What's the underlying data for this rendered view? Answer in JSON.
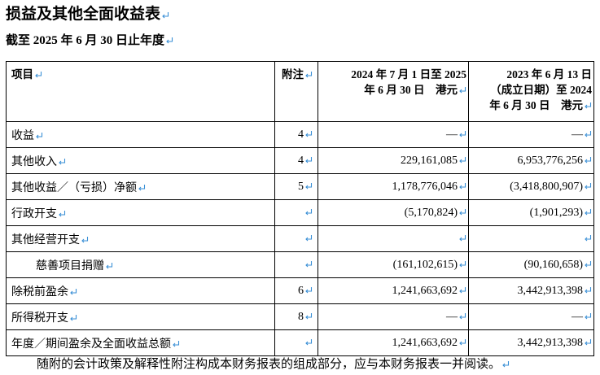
{
  "title": "损益及其他全面收益表",
  "subtitle": "截至 2025 年 6 月 30 日止年度",
  "table": {
    "header": [
      "项目",
      "附注",
      [
        "2024 年 7 月 1 日至 2025",
        "年 6 月 30 日　港元"
      ],
      [
        "2023 年 6 月 13 日",
        "（成立日期）至 2024",
        "年 6 月 30 日　港元"
      ]
    ],
    "rows": [
      [
        "收益",
        "4",
        "—",
        "—"
      ],
      [
        "其他收入",
        "4",
        "229,161,085",
        "6,953,776,256"
      ],
      [
        "其他收益／（亏损）净额",
        "5",
        "1,178,776,046",
        "(3,418,800,907)"
      ],
      [
        "行政开支",
        null,
        "(5,170,824)",
        "(1,901,293)"
      ],
      [
        "其他经营开支",
        null,
        null,
        null
      ],
      [
        "慈善项目捐赠",
        null,
        "(161,102,615)",
        "(90,160,658)"
      ],
      [
        "除税前盈余",
        "6",
        "1,241,663,692",
        "3,442,913,398"
      ],
      [
        "所得税开支",
        "8",
        "—",
        "—"
      ],
      [
        "年度／期间盈余及全面收益总额",
        null,
        "1,241,663,692",
        "3,442,913,398"
      ]
    ]
  },
  "footnote": "随附的会计政策及解释性附注构成本财务报表的组成部分，应与本财务报表一并阅读。"
}
